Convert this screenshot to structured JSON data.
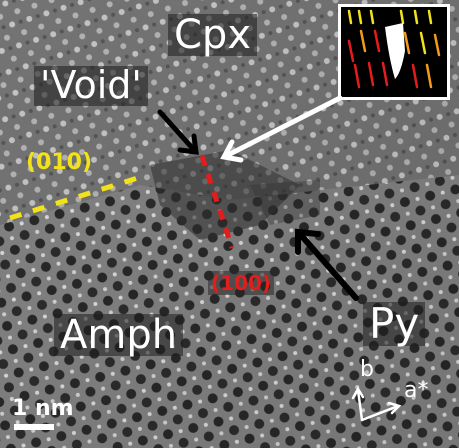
{
  "labels": {
    "cpx": "Cpx",
    "void": "'Void'",
    "amph": "Amph",
    "py": "Py",
    "plane_010": "(010)",
    "plane_100": "(100)",
    "scale_bar": "1 nm",
    "axis_b": "b",
    "axis_a_star": "a*"
  },
  "colors": {
    "plane_010": "#f2e21a",
    "plane_100": "#e41c1c",
    "arrows": "#ffffff",
    "label_text": "#ffffff"
  }
}
